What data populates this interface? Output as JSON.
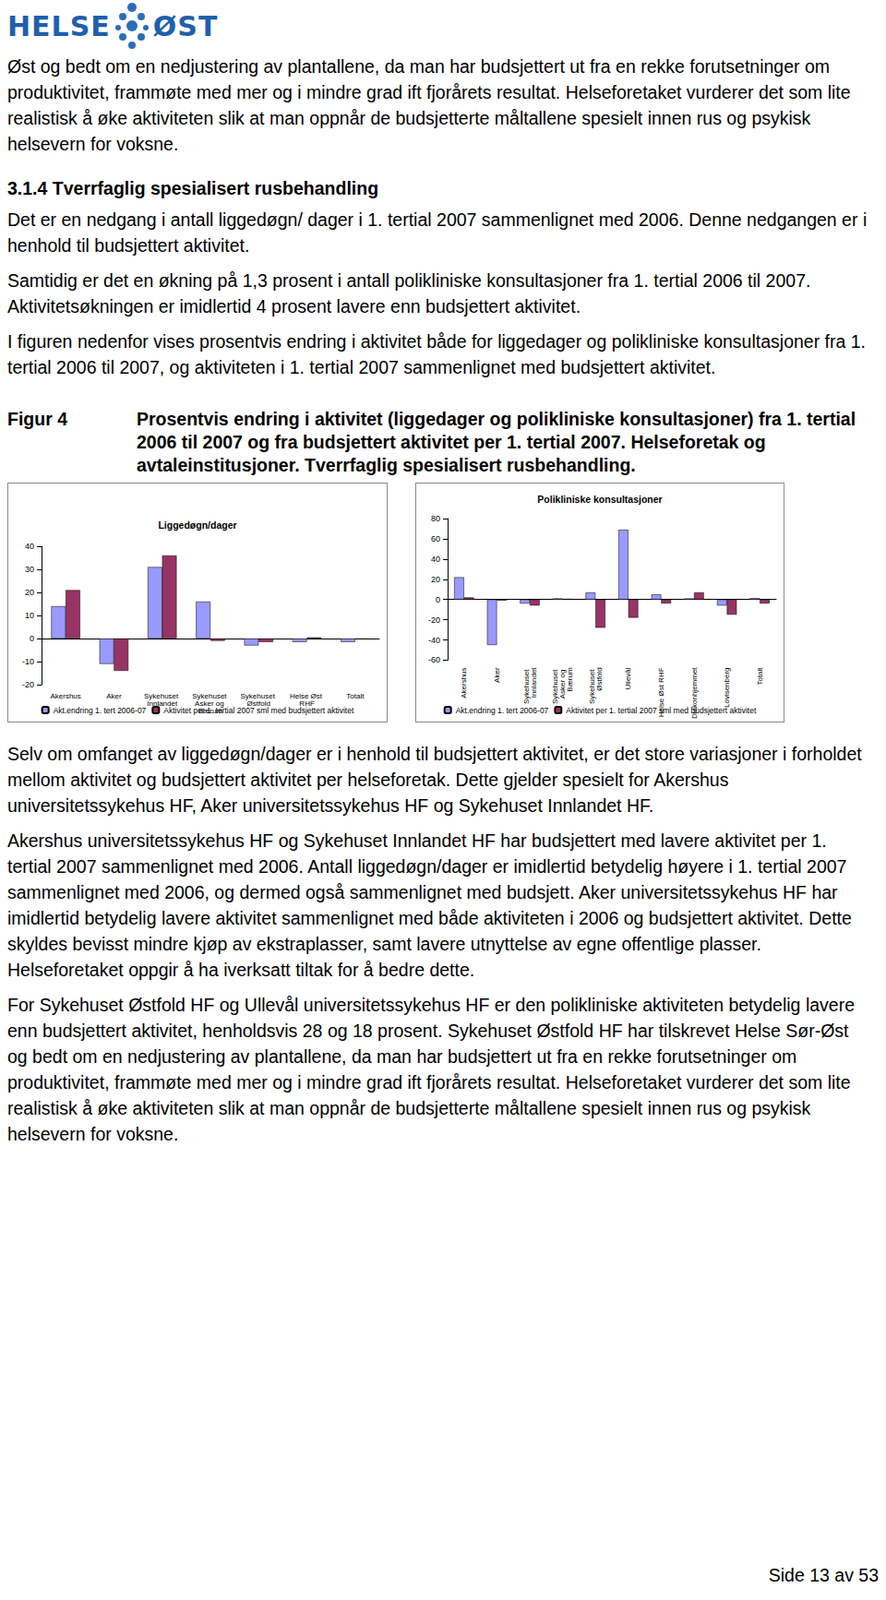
{
  "document": {
    "logo": [
      "HELSE",
      "ØST"
    ],
    "intro": "Øst og bedt om en nedjustering av plantallene, da man har budsjettert ut fra en rekke forutsetninger om produktivitet, frammøte med mer og i mindre grad ift fjorårets resultat. Helseforetaket vurderer det som lite realistisk å øke aktiviteten slik at man oppnår de budsjetterte måltallene spesielt innen rus og psykisk helsevern for voksne.",
    "heading": "3.1.4 Tverrfaglig spesialisert rusbehandling",
    "paragraphs_before": [
      "Det er en nedgang i antall liggedøgn/ dager i 1. tertial 2007 sammenlignet med 2006. Denne nedgangen er i henhold til budsjettert aktivitet.",
      "Samtidig er det en økning på 1,3 prosent i antall polikliniske konsultasjoner fra 1. tertial 2006 til 2007. Aktivitetsøkningen er imidlertid 4 prosent lavere enn budsjettert aktivitet.",
      "I figuren nedenfor vises prosentvis endring i aktivitet både for liggedager og polikliniske konsultasjoner fra 1. tertial 2006 til 2007, og aktiviteten i 1. tertial 2007 sammenlignet med budsjettert aktivitet."
    ],
    "figure": {
      "label": "Figur 4",
      "caption": "Prosentvis endring i aktivitet (liggedager og polikliniske konsultasjoner) fra 1. tertial 2006 til 2007 og fra budsjettert aktivitet per 1. tertial 2007. Helseforetak og avtaleinstitusjoner. Tverrfaglig spesialisert rusbehandling."
    },
    "paragraphs_after": [
      "Selv om omfanget av liggedøgn/dager er i henhold til budsjettert aktivitet, er det store variasjoner i forholdet mellom aktivitet og budsjettert aktivitet per helseforetak. Dette gjelder spesielt for Akershus universitetssykehus HF, Aker universitetssykehus HF og Sykehuset Innlandet HF.",
      "Akershus universitetssykehus HF og Sykehuset Innlandet HF har budsjettert med lavere aktivitet per 1. tertial 2007 sammenlignet med 2006. Antall liggedøgn/dager er imidlertid betydelig høyere i 1. tertial 2007 sammenlignet med 2006, og dermed også sammenlignet med budsjett. Aker universitetssykehus HF har imidlertid betydelig lavere aktivitet sammenlignet med både aktiviteten i 2006 og budsjettert aktivitet. Dette skyldes bevisst mindre kjøp av ekstraplasser, samt lavere utnyttelse av egne offentlige plasser. Helseforetaket oppgir å ha iverksatt tiltak for å bedre dette.",
      "For Sykehuset Østfold HF og Ullevål universitetssykehus HF er den polikliniske aktiviteten betydelig lavere enn budsjettert aktivitet, henholdsvis 28 og 18 prosent. Sykehuset Østfold HF har tilskrevet Helse Sør-Øst og bedt om en nedjustering av plantallene, da man har budsjettert ut fra en rekke forutsetninger om produktivitet, frammøte med mer og i mindre grad ift fjorårets resultat. Helseforetaket vurderer det som lite realistisk å øke aktiviteten slik at man oppnår de budsjetterte måltallene spesielt innen rus og psykisk helsevern for voksne."
    ],
    "footer": "Side 13 av 53"
  },
  "chart_data": [
    {
      "type": "bar",
      "title": "Liggedøgn/dager",
      "categories": [
        "Akershus",
        "Aker",
        "Sykehuset Innlandet",
        "Sykehuset Asker og Bærum",
        "Sykehuset Østfold",
        "Helse Øst RHF",
        "Totalt"
      ],
      "series": [
        {
          "name": "Akt.endring 1. tert 2006-07",
          "color": "#9999ff",
          "values": [
            14,
            -11,
            31,
            16,
            -3,
            -1.5,
            -1.5
          ]
        },
        {
          "name": "Aktivitet per 1. tertial 2007 sml med budsjettert aktivitet",
          "color": "#993366",
          "values": [
            21,
            -14,
            36,
            -1,
            -1.5,
            0.5,
            -0.3
          ]
        }
      ],
      "ylim": [
        -20,
        40
      ],
      "yticks": [
        -20,
        -10,
        0,
        10,
        20,
        30,
        40
      ],
      "grid": false,
      "legend": "bottom"
    },
    {
      "type": "bar",
      "title": "Polikliniske konsultasjoner",
      "categories": [
        "Akershus",
        "Aker",
        "Sykehuset Innlandet",
        "Sykehuset Asker og Bærum",
        "Sykehuset Østfold",
        "Ullevål",
        "Helse Øst RHF",
        "Diakonhjemmet",
        "Lovisenberg",
        "Totalt"
      ],
      "series": [
        {
          "name": "Akt.endring 1. tert 2006-07",
          "color": "#9999ff",
          "values": [
            22,
            -45,
            -4,
            1,
            7,
            69,
            5,
            1,
            -6,
            1.3
          ]
        },
        {
          "name": "Aktivitet per 1. tertial 2007 sml med budsjettert aktivitet",
          "color": "#993366",
          "values": [
            2,
            -1,
            -6,
            0.5,
            -28,
            -18,
            -4,
            7,
            -15,
            -4
          ]
        }
      ],
      "ylim": [
        -60,
        80
      ],
      "yticks": [
        -60,
        -40,
        -20,
        0,
        20,
        40,
        60,
        80
      ],
      "grid": false,
      "legend": "bottom"
    }
  ]
}
